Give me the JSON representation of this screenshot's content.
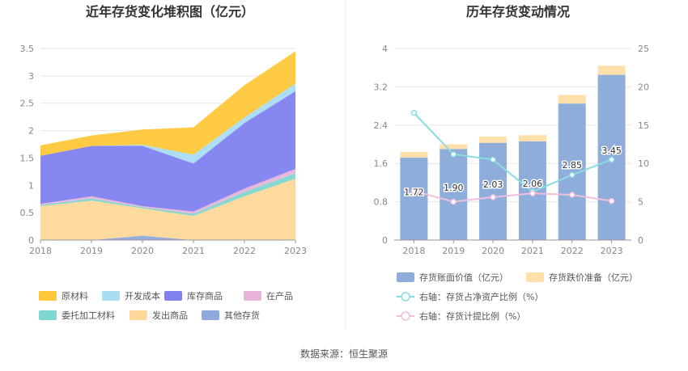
{
  "left_chart": {
    "title": "近年存货变化堆积图（亿元）",
    "y_ticks": [
      "0",
      "0.5",
      "1",
      "1.5",
      "2",
      "2.5",
      "3",
      "3.5"
    ],
    "x_ticks": [
      "2018",
      "2019",
      "2020",
      "2021",
      "2022",
      "2023"
    ],
    "legend": [
      {
        "label": "原材料",
        "color": "#ffc83a"
      },
      {
        "label": "开发成本",
        "color": "#a8dcf3"
      },
      {
        "label": "库存商品",
        "color": "#8181f0"
      },
      {
        "label": "在产品",
        "color": "#e7b4d9"
      },
      {
        "label": "委托加工材料",
        "color": "#7fd6cf"
      },
      {
        "label": "发出商品",
        "color": "#ffd89a"
      },
      {
        "label": "其他存货",
        "color": "#8fa9dc"
      }
    ]
  },
  "right_chart": {
    "title": "历年存货变动情况",
    "y_left_ticks": [
      "0",
      "0.8",
      "1.6",
      "2.4",
      "3.2",
      "4"
    ],
    "y_right_ticks": [
      "0",
      "5",
      "10",
      "15",
      "20",
      "25"
    ],
    "x_ticks": [
      "2018",
      "2019",
      "2020",
      "2021",
      "2022",
      "2023"
    ],
    "legend": [
      {
        "label": "存货账面价值（亿元）",
        "color": "#8eaddb"
      },
      {
        "label": "存货跌价准备（亿元）",
        "color": "#ffe0aa"
      },
      {
        "label": "右轴：存货占净资产比例（%）",
        "color": "#88dde0"
      },
      {
        "label": "右轴：存货计提比例（%）",
        "color": "#efbfdc"
      }
    ]
  },
  "source_text": "数据来源：恒生聚源",
  "chart_data": [
    {
      "type": "area",
      "title": "近年存货变化堆积图（亿元）",
      "stacked": true,
      "categories": [
        "2018",
        "2019",
        "2020",
        "2021",
        "2022",
        "2023"
      ],
      "ylim": [
        0,
        3.5
      ],
      "grid": true,
      "legend_position": "bottom",
      "series": [
        {
          "name": "其他存货",
          "color": "#8fa9dc",
          "values": [
            0.0,
            0.0,
            0.08,
            0.0,
            0.0,
            0.0
          ]
        },
        {
          "name": "发出商品",
          "color": "#ffd89a",
          "values": [
            0.62,
            0.72,
            0.5,
            0.44,
            0.8,
            1.12
          ]
        },
        {
          "name": "委托加工材料",
          "color": "#7fd6cf",
          "values": [
            0.02,
            0.04,
            0.02,
            0.04,
            0.08,
            0.1
          ]
        },
        {
          "name": "在产品",
          "color": "#e7b4d9",
          "values": [
            0.02,
            0.04,
            0.02,
            0.04,
            0.06,
            0.08
          ]
        },
        {
          "name": "库存商品",
          "color": "#8181f0",
          "values": [
            0.88,
            0.92,
            1.1,
            0.88,
            1.2,
            1.42
          ]
        },
        {
          "name": "开发成本",
          "color": "#a8dcf3",
          "values": [
            0.0,
            0.0,
            0.02,
            0.16,
            0.1,
            0.14
          ]
        },
        {
          "name": "原材料",
          "color": "#ffc83a",
          "values": [
            0.19,
            0.19,
            0.28,
            0.5,
            0.59,
            0.59
          ]
        }
      ]
    },
    {
      "type": "bar",
      "title": "历年存货变动情况",
      "stacked": true,
      "categories": [
        "2018",
        "2019",
        "2020",
        "2021",
        "2022",
        "2023"
      ],
      "ylim": [
        0,
        4
      ],
      "y2lim": [
        0,
        25
      ],
      "grid": true,
      "legend_position": "bottom",
      "series": [
        {
          "name": "存货账面价值（亿元）",
          "color": "#8eaddb",
          "axis": "left",
          "values": [
            1.72,
            1.9,
            2.03,
            2.06,
            2.85,
            3.45
          ],
          "labels": [
            "1.72",
            "1.90",
            "2.03",
            "2.06",
            "2.85",
            "3.45"
          ]
        },
        {
          "name": "存货跌价准备（亿元）",
          "color": "#ffe0aa",
          "axis": "left",
          "values": [
            0.12,
            0.1,
            0.13,
            0.13,
            0.18,
            0.19
          ]
        }
      ],
      "lines": [
        {
          "name": "右轴：存货占净资产比例（%）",
          "color": "#88dde0",
          "axis": "right",
          "values": [
            16.6,
            11.2,
            10.5,
            6.3,
            8.5,
            10.5
          ]
        },
        {
          "name": "右轴：存货计提比例（%）",
          "color": "#efbfdc",
          "axis": "right",
          "values": [
            6.4,
            5.0,
            5.6,
            6.1,
            5.9,
            5.1
          ]
        }
      ]
    }
  ]
}
